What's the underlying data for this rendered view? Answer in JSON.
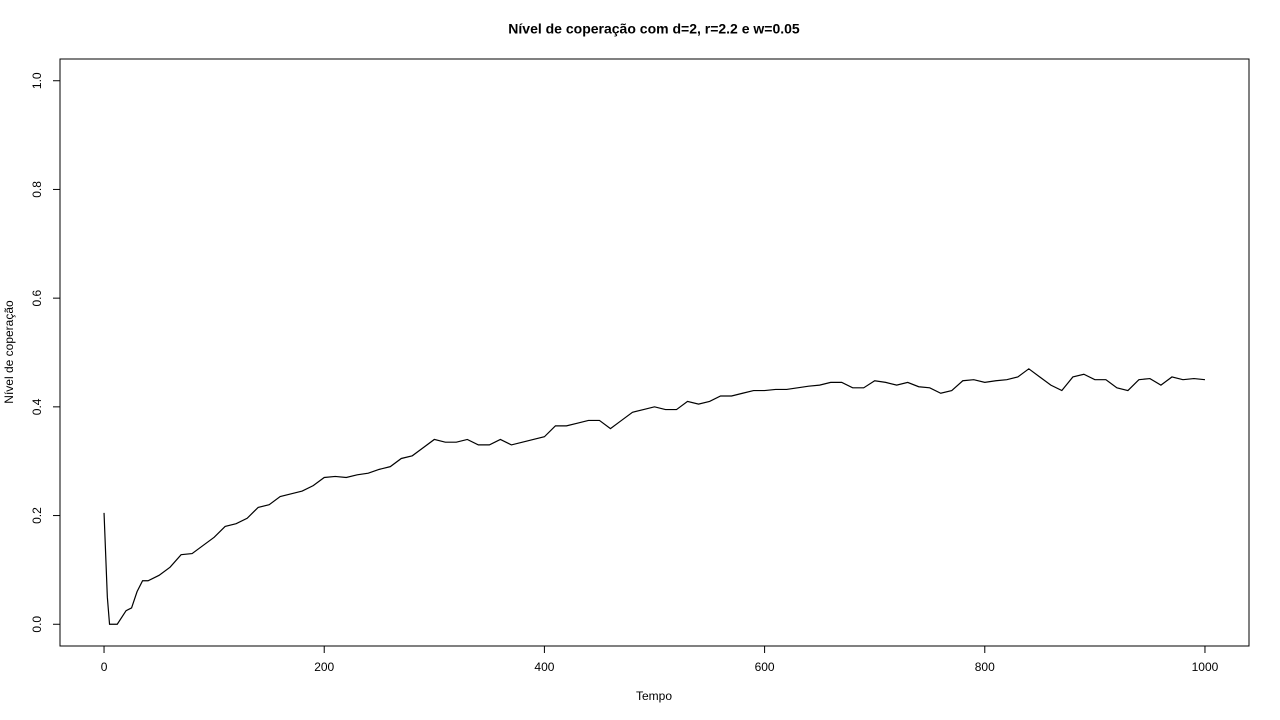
{
  "chart_data": {
    "type": "line",
    "title": "Nível de coperação com d=2, r=2.2 e w=0.05",
    "x_label": "Tempo",
    "y_label": "Nível de coperação",
    "color": "#000000",
    "x": [
      0,
      3,
      5,
      12,
      20,
      25,
      30,
      35,
      40,
      50,
      60,
      70,
      80,
      90,
      100,
      110,
      120,
      130,
      140,
      150,
      160,
      170,
      180,
      190,
      200,
      210,
      220,
      230,
      240,
      250,
      260,
      270,
      280,
      290,
      300,
      310,
      320,
      330,
      340,
      350,
      360,
      370,
      380,
      390,
      400,
      410,
      420,
      430,
      440,
      450,
      460,
      470,
      480,
      490,
      500,
      510,
      520,
      530,
      540,
      550,
      560,
      570,
      580,
      590,
      600,
      610,
      620,
      630,
      640,
      650,
      660,
      670,
      680,
      690,
      700,
      710,
      720,
      730,
      740,
      750,
      760,
      770,
      780,
      790,
      800,
      810,
      820,
      830,
      840,
      850,
      860,
      870,
      880,
      890,
      900,
      910,
      920,
      930,
      940,
      950,
      960,
      970,
      980,
      990,
      1000
    ],
    "values": [
      0.205,
      0.05,
      0.0,
      0.0,
      0.025,
      0.03,
      0.06,
      0.08,
      0.08,
      0.09,
      0.105,
      0.128,
      0.13,
      0.145,
      0.16,
      0.18,
      0.185,
      0.195,
      0.215,
      0.22,
      0.235,
      0.24,
      0.245,
      0.255,
      0.27,
      0.272,
      0.27,
      0.275,
      0.278,
      0.285,
      0.29,
      0.305,
      0.31,
      0.325,
      0.34,
      0.335,
      0.335,
      0.34,
      0.33,
      0.33,
      0.34,
      0.33,
      0.335,
      0.34,
      0.345,
      0.365,
      0.365,
      0.37,
      0.375,
      0.375,
      0.36,
      0.375,
      0.39,
      0.395,
      0.4,
      0.395,
      0.395,
      0.41,
      0.405,
      0.41,
      0.42,
      0.42,
      0.425,
      0.43,
      0.43,
      0.432,
      0.432,
      0.435,
      0.438,
      0.44,
      0.445,
      0.445,
      0.435,
      0.435,
      0.448,
      0.445,
      0.44,
      0.445,
      0.437,
      0.435,
      0.425,
      0.43,
      0.448,
      0.45,
      0.445,
      0.448,
      0.45,
      0.455,
      0.47,
      0.455,
      0.44,
      0.43,
      0.455,
      0.46,
      0.45,
      0.45,
      0.435,
      0.43,
      0.45,
      0.452,
      0.44,
      0.455,
      0.45,
      0.452,
      0.45
    ],
    "xlim": [
      -40,
      1040
    ],
    "ylim": [
      -0.04,
      1.04
    ],
    "xticks": [
      0,
      200,
      400,
      600,
      800,
      1000
    ],
    "yticks": [
      {
        "value": 0,
        "label": "0.0"
      },
      0.2,
      0.4,
      0.6,
      0.8,
      {
        "value": 1,
        "label": "1.0"
      }
    ]
  }
}
